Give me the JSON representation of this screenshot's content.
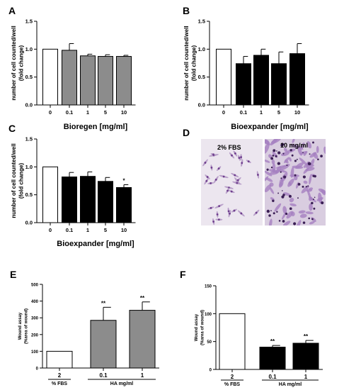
{
  "colors": {
    "white_fill": "#ffffff",
    "gray_fill": "#8c8c8c",
    "black_fill": "#000000",
    "axis": "#000000"
  },
  "panels": {
    "A": {
      "letter": "A"
    },
    "B": {
      "letter": "B"
    },
    "C": {
      "letter": "C"
    },
    "D": {
      "letter": "D",
      "left_caption": "2% FBS",
      "right_caption": "10 mg/ml"
    },
    "E": {
      "letter": "E"
    },
    "F": {
      "letter": "F"
    }
  },
  "chart_data": [
    {
      "panel": "A",
      "type": "bar",
      "categories": [
        "0",
        "0.1",
        "1",
        "5",
        "10"
      ],
      "values": [
        1.0,
        0.98,
        0.88,
        0.87,
        0.87
      ],
      "errors": [
        0,
        0.12,
        0.03,
        0.03,
        0.02
      ],
      "fills": [
        "white",
        "gray",
        "gray",
        "gray",
        "gray"
      ],
      "annotations": [
        "",
        "",
        "",
        "",
        ""
      ],
      "ylim": [
        0,
        1.5
      ],
      "yticks": [
        0.0,
        0.5,
        1.0,
        1.5
      ],
      "ytick_labels": [
        "0.0",
        "0.5",
        "1.0",
        "1.5"
      ],
      "ylabel_lines": [
        "number of cell counted/well",
        "(fold change)"
      ],
      "xlabel": "Bioregen [mg/ml]"
    },
    {
      "panel": "B",
      "type": "bar",
      "categories": [
        "0",
        "0.1",
        "1",
        "5",
        "10"
      ],
      "values": [
        1.0,
        0.74,
        0.89,
        0.74,
        0.92
      ],
      "errors": [
        0,
        0.13,
        0.11,
        0.21,
        0.18
      ],
      "fills": [
        "white",
        "black",
        "black",
        "black",
        "black"
      ],
      "annotations": [
        "",
        "",
        "",
        "",
        ""
      ],
      "ylim": [
        0,
        1.5
      ],
      "yticks": [
        0.0,
        0.5,
        1.0,
        1.5
      ],
      "ytick_labels": [
        "0.0",
        "0.5",
        "1.0",
        "1.5"
      ],
      "ylabel_lines": [
        "number of cell counted/well",
        "(fold change)"
      ],
      "xlabel": "Bioexpander [mg/ml]"
    },
    {
      "panel": "C",
      "type": "bar",
      "categories": [
        "0",
        "0.1",
        "1",
        "5",
        "10"
      ],
      "values": [
        1.0,
        0.82,
        0.83,
        0.74,
        0.63
      ],
      "errors": [
        0,
        0.08,
        0.08,
        0.07,
        0.05
      ],
      "fills": [
        "white",
        "black",
        "black",
        "black",
        "black"
      ],
      "annotations": [
        "",
        "",
        "",
        "",
        "*"
      ],
      "ylim": [
        0,
        1.5
      ],
      "yticks": [
        0.0,
        0.5,
        1.0,
        1.5
      ],
      "ytick_labels": [
        "0.0",
        "0.5",
        "1.0",
        "1.5"
      ],
      "ylabel_lines": [
        "number of cell counted/well",
        "(fold change)"
      ],
      "xlabel": "Bioexpander [mg/ml]"
    },
    {
      "panel": "E",
      "type": "bar",
      "categories": [
        "2",
        "0.1",
        "1"
      ],
      "values": [
        100,
        285,
        345
      ],
      "errors": [
        0,
        78,
        50
      ],
      "fills": [
        "white",
        "gray",
        "gray"
      ],
      "annotations": [
        "",
        "**",
        "**"
      ],
      "ylim": [
        0,
        500
      ],
      "yticks": [
        0,
        100,
        200,
        300,
        400,
        500
      ],
      "ytick_labels": [
        "0",
        "100",
        "200",
        "300",
        "400",
        "500"
      ],
      "ylabel_lines": [
        "Wound assay",
        "(%area of wound)"
      ],
      "group_labels": [
        "% FBS",
        "HA mg/ml"
      ]
    },
    {
      "panel": "F",
      "type": "bar",
      "categories": [
        "2",
        "0.1",
        "1"
      ],
      "values": [
        100,
        40,
        47
      ],
      "errors": [
        0,
        3,
        5
      ],
      "fills": [
        "white",
        "black",
        "black"
      ],
      "annotations": [
        "",
        "**",
        "**"
      ],
      "ylim": [
        0,
        150
      ],
      "yticks": [
        0,
        50,
        100,
        150
      ],
      "ytick_labels": [
        "0",
        "50",
        "100",
        "150"
      ],
      "ylabel_lines": [
        "Wound assay",
        "(%area of wound)"
      ],
      "group_labels": [
        "% FBS",
        "HA mg/ml"
      ]
    }
  ]
}
